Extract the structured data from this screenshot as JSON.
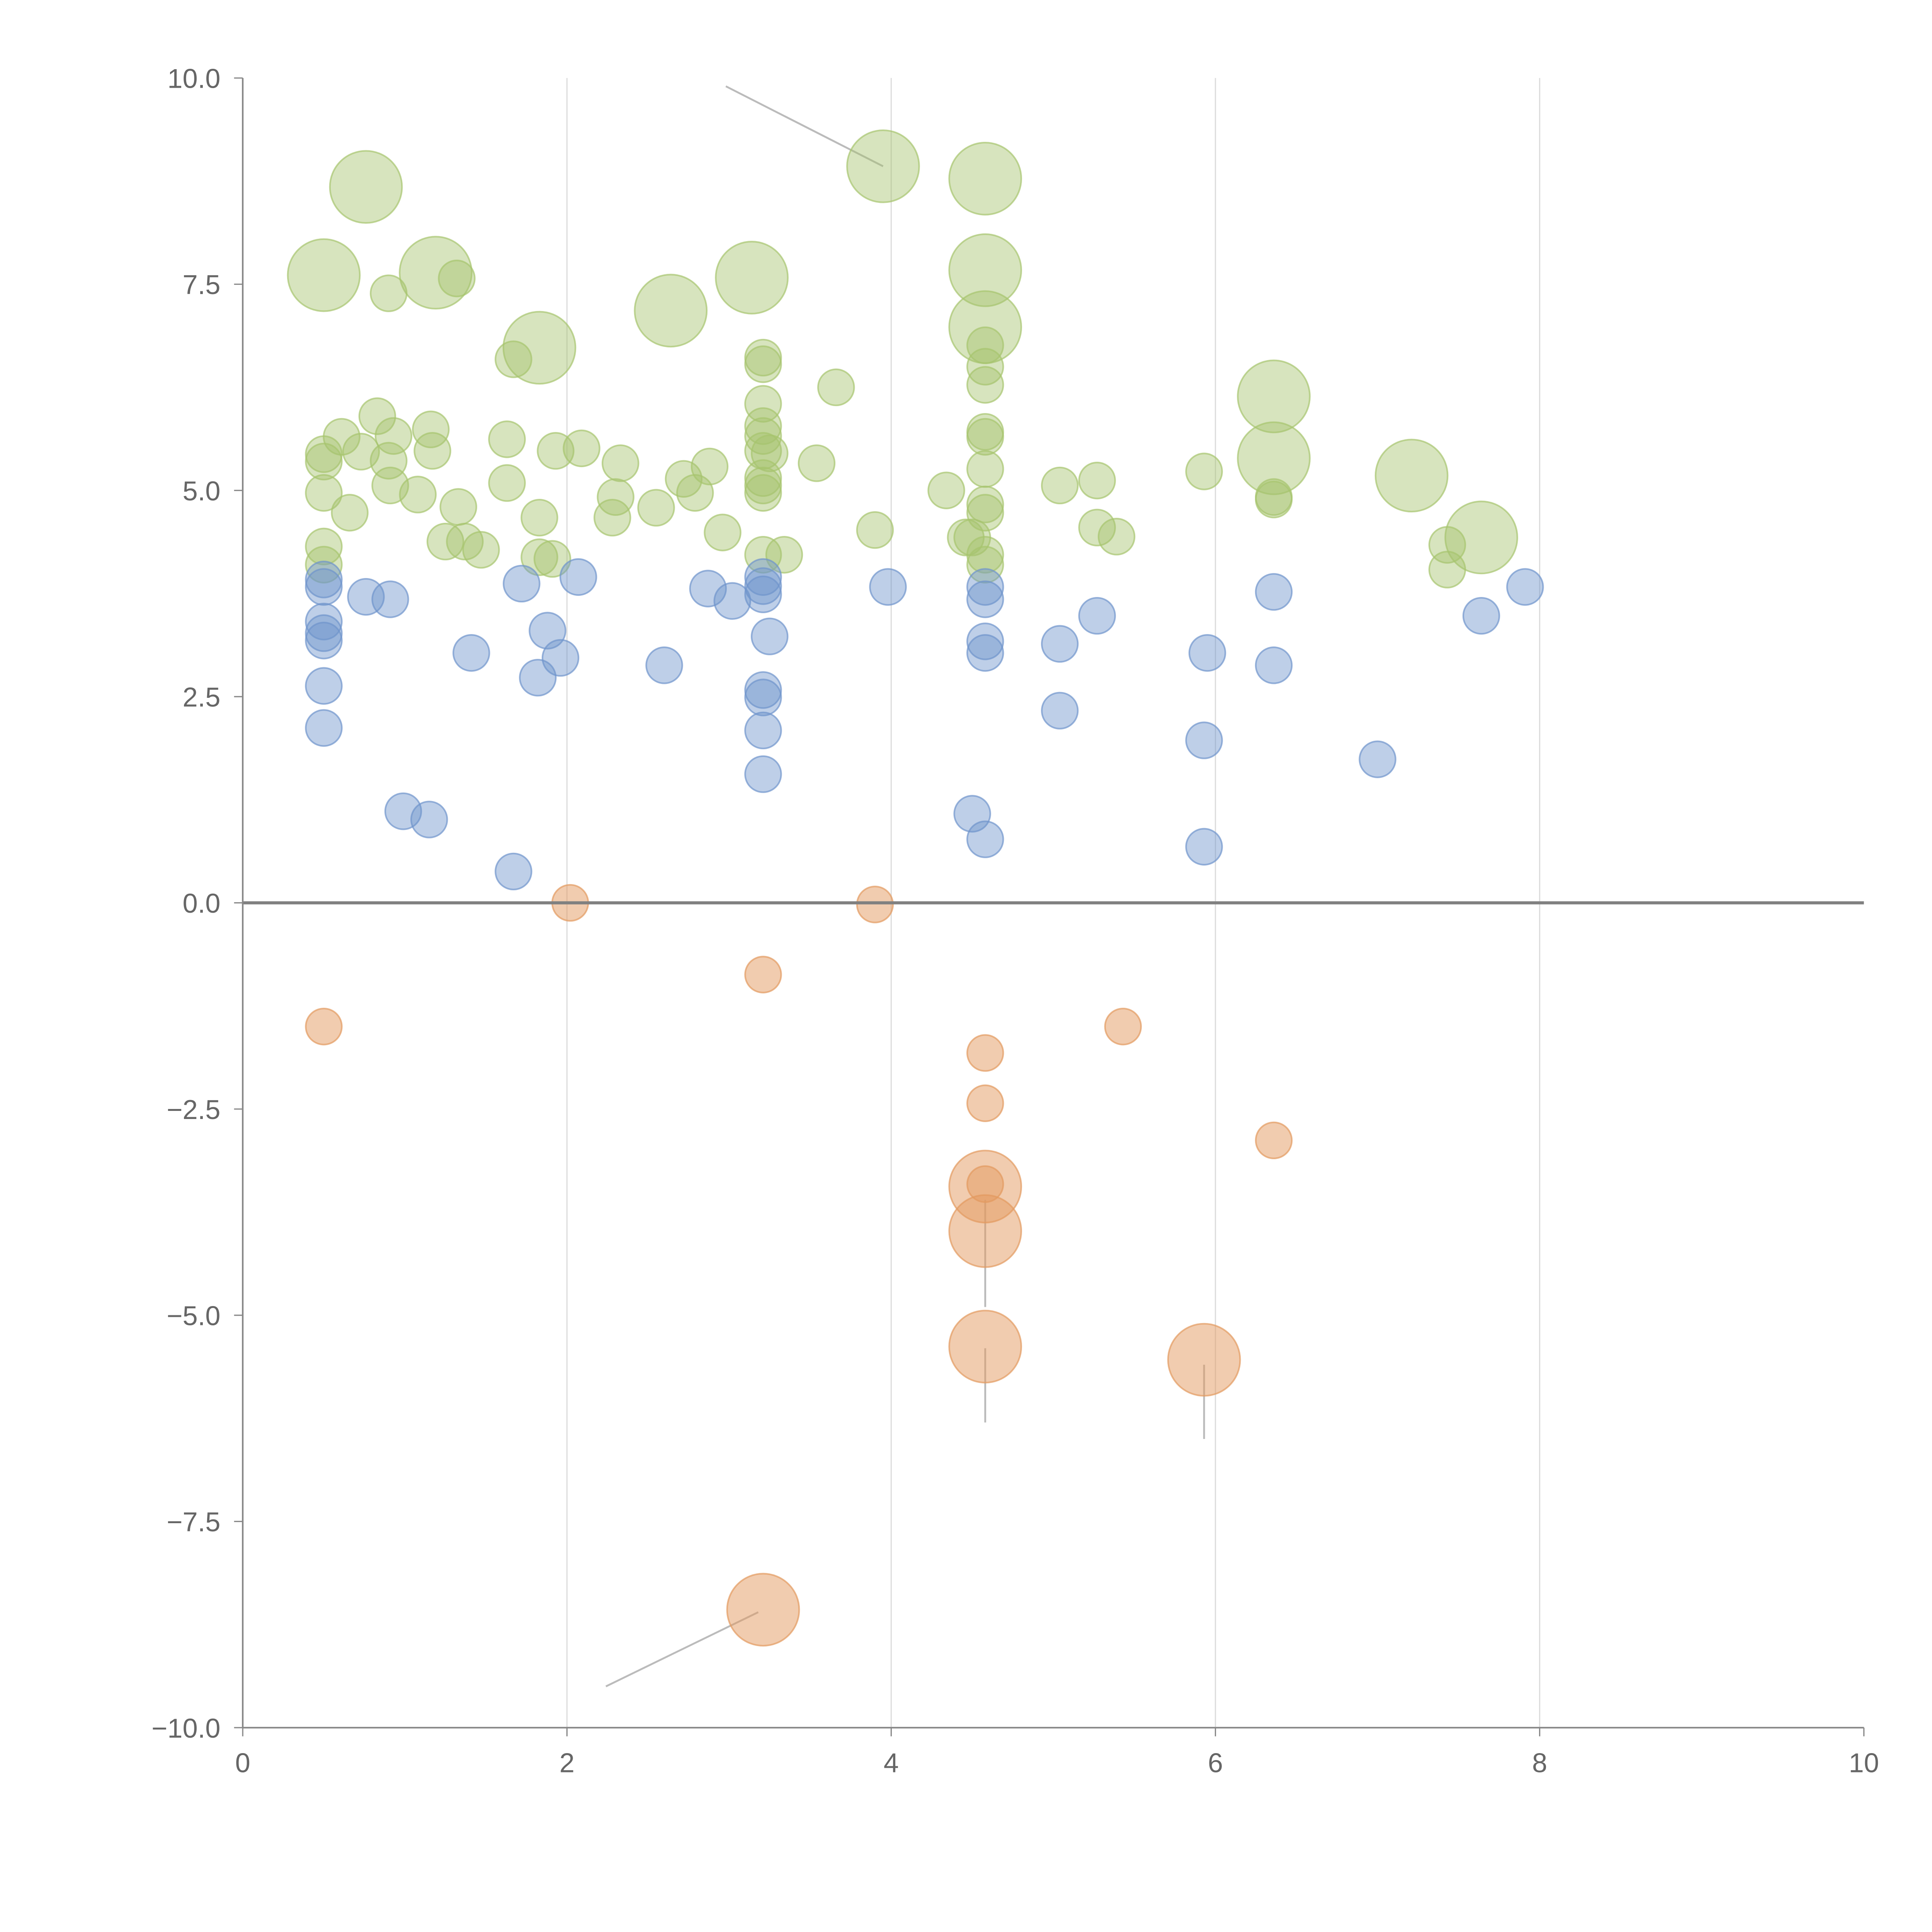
{
  "chart_data": {
    "type": "scatter",
    "title": "",
    "xlabel": "",
    "ylabel": "",
    "xlim": [
      0,
      10
    ],
    "ylim": [
      -10,
      10
    ],
    "grid": "vertical",
    "x_ticks": [
      "0",
      "2",
      "4",
      "6",
      "8",
      "10"
    ],
    "y_ticks": [
      "10.0",
      "7.5",
      "5.0",
      "2.5",
      "0.0",
      "−2.5",
      "−5.0",
      "−7.5",
      "−10.0"
    ],
    "colors": {
      "green": "#a6c46e",
      "blue": "#6f94cc",
      "orange": "#e39a60"
    },
    "series": [
      {
        "name": "green",
        "color": "#a6c46e",
        "points": [
          [
            0.76,
            8.68,
            4
          ],
          [
            0.5,
            7.61,
            4
          ],
          [
            1.19,
            7.64,
            4
          ],
          [
            1.83,
            6.73,
            4
          ],
          [
            2.64,
            7.18,
            4
          ],
          [
            3.14,
            7.58,
            4
          ],
          [
            3.95,
            8.93,
            4
          ],
          [
            4.58,
            8.78,
            4
          ],
          [
            4.58,
            7.67,
            4
          ],
          [
            4.58,
            6.98,
            4
          ],
          [
            6.36,
            6.14,
            4
          ],
          [
            6.36,
            5.39,
            4
          ],
          [
            7.21,
            5.18,
            4
          ],
          [
            7.64,
            4.43,
            4
          ],
          [
            0.9,
            7.39,
            1
          ],
          [
            1.32,
            7.57,
            1
          ],
          [
            1.67,
            6.59,
            1
          ],
          [
            0.83,
            5.9,
            1
          ],
          [
            0.61,
            5.65,
            1
          ],
          [
            0.93,
            5.66,
            1
          ],
          [
            1.16,
            5.74,
            1
          ],
          [
            1.17,
            5.48,
            1
          ],
          [
            0.5,
            5.44,
            1
          ],
          [
            0.5,
            5.35,
            1
          ],
          [
            0.9,
            5.36,
            1
          ],
          [
            0.73,
            5.47,
            1
          ],
          [
            0.5,
            4.97,
            1
          ],
          [
            0.91,
            5.06,
            1
          ],
          [
            1.08,
            4.95,
            1
          ],
          [
            0.66,
            4.73,
            1
          ],
          [
            1.33,
            4.8,
            1
          ],
          [
            0.5,
            4.32,
            1
          ],
          [
            0.5,
            4.1,
            1
          ],
          [
            1.25,
            4.38,
            1
          ],
          [
            1.37,
            4.38,
            1
          ],
          [
            1.47,
            4.28,
            1
          ],
          [
            1.63,
            5.62,
            1
          ],
          [
            1.63,
            5.09,
            1
          ],
          [
            1.83,
            4.67,
            1
          ],
          [
            1.83,
            4.19,
            1
          ],
          [
            1.91,
            4.17,
            1
          ],
          [
            1.93,
            5.48,
            1
          ],
          [
            2.09,
            5.51,
            1
          ],
          [
            2.33,
            5.33,
            1
          ],
          [
            2.3,
            4.92,
            1
          ],
          [
            2.28,
            4.67,
            1
          ],
          [
            2.55,
            4.79,
            1
          ],
          [
            2.72,
            5.14,
            1
          ],
          [
            2.79,
            4.97,
            1
          ],
          [
            2.88,
            5.29,
            1
          ],
          [
            2.96,
            4.49,
            1
          ],
          [
            3.21,
            6.61,
            1
          ],
          [
            3.21,
            6.53,
            1
          ],
          [
            3.21,
            6.05,
            1
          ],
          [
            3.21,
            5.78,
            1
          ],
          [
            3.21,
            5.66,
            1
          ],
          [
            3.21,
            5.48,
            1
          ],
          [
            3.25,
            5.45,
            1
          ],
          [
            3.21,
            5.15,
            1
          ],
          [
            3.21,
            5.06,
            1
          ],
          [
            3.21,
            4.97,
            1
          ],
          [
            3.21,
            4.22,
            1
          ],
          [
            3.34,
            4.22,
            1
          ],
          [
            3.54,
            5.33,
            1
          ],
          [
            3.66,
            6.25,
            1
          ],
          [
            3.9,
            4.52,
            1
          ],
          [
            4.34,
            5.0,
            1
          ],
          [
            4.46,
            4.43,
            1
          ],
          [
            4.5,
            4.43,
            1
          ],
          [
            4.58,
            6.76,
            1
          ],
          [
            4.58,
            6.5,
            1
          ],
          [
            4.58,
            6.28,
            1
          ],
          [
            4.58,
            5.71,
            1
          ],
          [
            4.58,
            5.65,
            1
          ],
          [
            4.58,
            5.26,
            1
          ],
          [
            4.58,
            4.83,
            1
          ],
          [
            4.58,
            4.73,
            1
          ],
          [
            4.58,
            4.22,
            1
          ],
          [
            4.58,
            4.1,
            1
          ],
          [
            5.04,
            5.06,
            1
          ],
          [
            5.27,
            5.12,
            1
          ],
          [
            5.27,
            4.55,
            1
          ],
          [
            5.39,
            4.44,
            1
          ],
          [
            5.93,
            5.23,
            1
          ],
          [
            6.36,
            4.92,
            1
          ],
          [
            6.36,
            4.89,
            1
          ],
          [
            7.43,
            4.34,
            1
          ],
          [
            7.43,
            4.04,
            1
          ]
        ]
      },
      {
        "name": "blue",
        "color": "#6f94cc",
        "points": [
          [
            0.5,
            3.92,
            1
          ],
          [
            0.5,
            3.83,
            1
          ],
          [
            0.5,
            3.41,
            1
          ],
          [
            0.5,
            3.27,
            1
          ],
          [
            0.5,
            3.18,
            1
          ],
          [
            0.5,
            2.63,
            1
          ],
          [
            0.5,
            2.12,
            1
          ],
          [
            0.76,
            3.71,
            1
          ],
          [
            0.91,
            3.68,
            1
          ],
          [
            1.41,
            3.03,
            1
          ],
          [
            0.99,
            1.11,
            1
          ],
          [
            1.15,
            1.01,
            1
          ],
          [
            1.67,
            0.38,
            1
          ],
          [
            1.72,
            3.87,
            1
          ],
          [
            1.88,
            3.3,
            1
          ],
          [
            1.96,
            2.97,
            1
          ],
          [
            1.82,
            2.73,
            1
          ],
          [
            2.07,
            3.95,
            1
          ],
          [
            2.6,
            2.88,
            1
          ],
          [
            2.87,
            3.81,
            1
          ],
          [
            3.02,
            3.66,
            1
          ],
          [
            3.21,
            3.95,
            1
          ],
          [
            3.21,
            3.84,
            1
          ],
          [
            3.21,
            3.74,
            1
          ],
          [
            3.25,
            3.23,
            1
          ],
          [
            3.21,
            2.58,
            1
          ],
          [
            3.21,
            2.49,
            1
          ],
          [
            3.21,
            2.09,
            1
          ],
          [
            3.21,
            1.56,
            1
          ],
          [
            3.98,
            3.83,
            1
          ],
          [
            4.5,
            1.08,
            1
          ],
          [
            4.58,
            0.77,
            1
          ],
          [
            4.58,
            3.83,
            1
          ],
          [
            4.58,
            3.68,
            1
          ],
          [
            4.58,
            3.17,
            1
          ],
          [
            4.58,
            3.03,
            1
          ],
          [
            5.04,
            3.14,
            1
          ],
          [
            5.04,
            2.33,
            1
          ],
          [
            5.27,
            3.48,
            1
          ],
          [
            5.95,
            3.03,
            1
          ],
          [
            5.93,
            1.97,
            1
          ],
          [
            5.93,
            0.68,
            1
          ],
          [
            6.36,
            3.77,
            1
          ],
          [
            6.36,
            2.88,
            1
          ],
          [
            7.0,
            1.74,
            1
          ],
          [
            7.64,
            3.48,
            1
          ],
          [
            7.91,
            3.83,
            1
          ]
        ]
      },
      {
        "name": "orange",
        "color": "#e39a60",
        "points": [
          [
            0.5,
            -1.5,
            1
          ],
          [
            2.02,
            0.0,
            1
          ],
          [
            3.9,
            -0.02,
            1
          ],
          [
            3.21,
            -0.87,
            1
          ],
          [
            5.43,
            -1.5,
            1
          ],
          [
            4.58,
            -1.82,
            1
          ],
          [
            4.58,
            -2.43,
            1
          ],
          [
            6.36,
            -2.88,
            1
          ],
          [
            4.58,
            -3.44,
            4
          ],
          [
            4.58,
            -3.41,
            1
          ],
          [
            4.58,
            -3.98,
            4
          ],
          [
            4.58,
            -5.38,
            4
          ],
          [
            5.93,
            -5.54,
            4
          ],
          [
            3.21,
            -8.57,
            4
          ]
        ]
      }
    ]
  }
}
